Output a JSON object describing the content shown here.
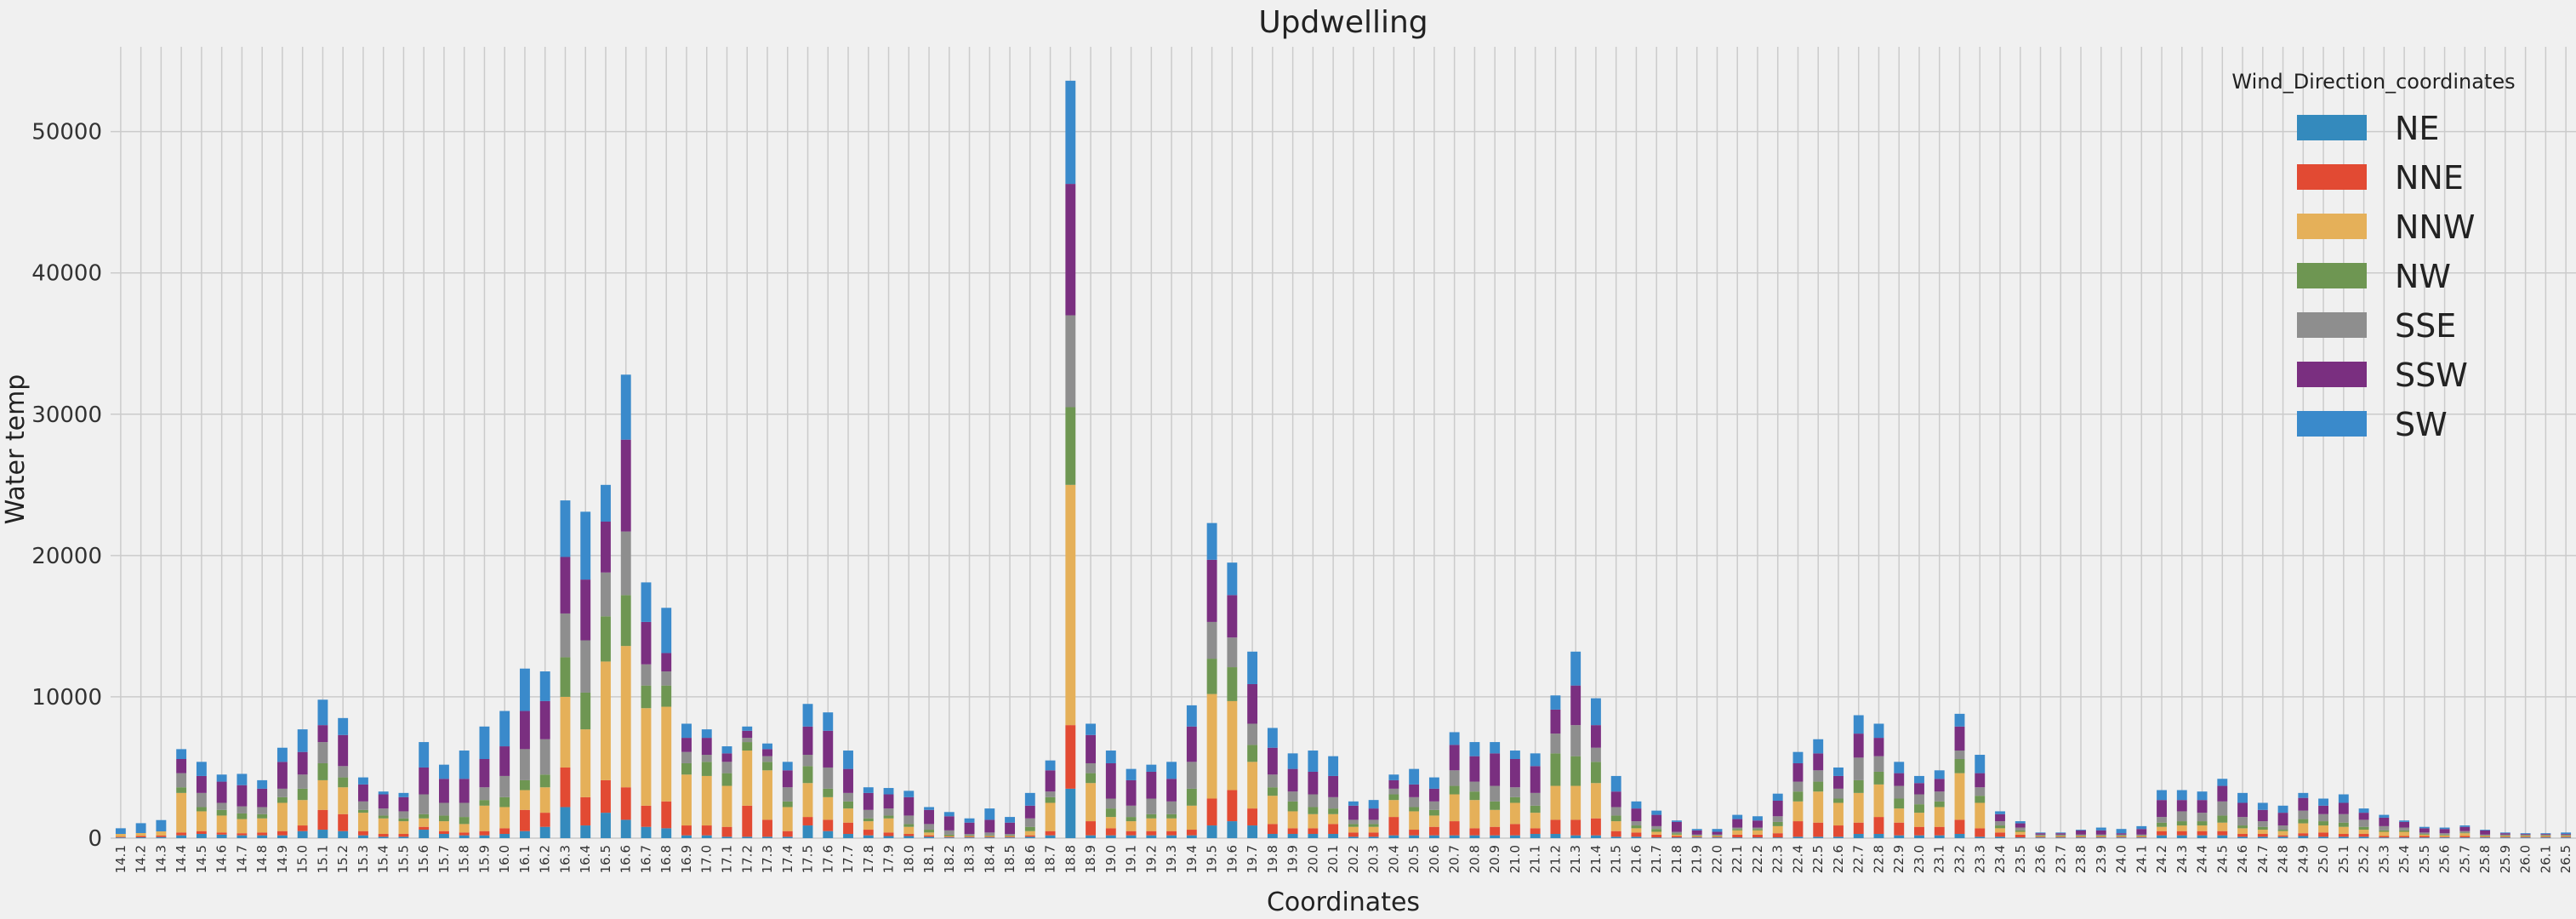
{
  "chart_data": {
    "type": "bar",
    "stacked": true,
    "title": "Updwelling",
    "xlabel": "Coordinates",
    "ylabel": "Water temp",
    "ylim": [
      0,
      56000
    ],
    "yticks": [
      0,
      10000,
      20000,
      30000,
      40000,
      50000
    ],
    "grid": true,
    "legend": {
      "title": "Wind_Direction_coordinates",
      "placement": "top-right"
    },
    "categories": [
      "14.1",
      "14.2",
      "14.3",
      "14.4",
      "14.5",
      "14.6",
      "14.7",
      "14.8",
      "14.9",
      "15.0",
      "15.1",
      "15.2",
      "15.3",
      "15.4",
      "15.5",
      "15.6",
      "15.7",
      "15.8",
      "15.9",
      "16.0",
      "16.1",
      "16.2",
      "16.3",
      "16.4",
      "16.5",
      "16.6",
      "16.7",
      "16.8",
      "16.9",
      "17.0",
      "17.1",
      "17.2",
      "17.3",
      "17.4",
      "17.5",
      "17.6",
      "17.7",
      "17.8",
      "17.9",
      "18.0",
      "18.1",
      "18.2",
      "18.3",
      "18.4",
      "18.5",
      "18.6",
      "18.7",
      "18.8",
      "18.9",
      "19.0",
      "19.1",
      "19.2",
      "19.3",
      "19.4",
      "19.5",
      "19.6",
      "19.7",
      "19.8",
      "19.9",
      "20.0",
      "20.1",
      "20.2",
      "20.3",
      "20.4",
      "20.5",
      "20.6",
      "20.7",
      "20.8",
      "20.9",
      "21.0",
      "21.1",
      "21.2",
      "21.3",
      "21.4",
      "21.5",
      "21.6",
      "21.7",
      "21.8",
      "21.9",
      "22.0",
      "22.1",
      "22.2",
      "22.3",
      "22.4",
      "22.5",
      "22.6",
      "22.7",
      "22.8",
      "22.9",
      "23.0",
      "23.1",
      "23.2",
      "23.3",
      "23.4",
      "23.5",
      "23.6",
      "23.7",
      "23.8",
      "23.9",
      "24.0",
      "24.1",
      "24.2",
      "24.3",
      "24.4",
      "24.5",
      "24.6",
      "24.7",
      "24.8",
      "24.9",
      "25.0",
      "25.1",
      "25.2",
      "25.3",
      "25.4",
      "25.5",
      "25.6",
      "25.7",
      "25.8",
      "25.9",
      "26.0",
      "26.1",
      "26.5"
    ],
    "series": [
      {
        "name": "NE",
        "color": "#348ABD",
        "values": [
          50,
          60,
          80,
          200,
          300,
          250,
          200,
          200,
          200,
          500,
          600,
          500,
          200,
          100,
          100,
          600,
          300,
          200,
          200,
          300,
          500,
          800,
          2200,
          900,
          1800,
          1300,
          800,
          700,
          200,
          200,
          100,
          100,
          100,
          100,
          900,
          500,
          300,
          200,
          150,
          150,
          100,
          50,
          50,
          50,
          50,
          100,
          200,
          3500,
          200,
          200,
          200,
          200,
          200,
          200,
          900,
          1200,
          900,
          300,
          300,
          300,
          300,
          100,
          100,
          200,
          200,
          200,
          200,
          200,
          200,
          200,
          300,
          300,
          200,
          200,
          100,
          100,
          50,
          50,
          50,
          50,
          50,
          50,
          50,
          100,
          100,
          100,
          300,
          300,
          200,
          200,
          200,
          300,
          100,
          100,
          50,
          50,
          50,
          50,
          50,
          50,
          50,
          200,
          200,
          200,
          200,
          100,
          100,
          100,
          150,
          100,
          100,
          100,
          50,
          50,
          50,
          50,
          50,
          50,
          50,
          50,
          50,
          50
        ]
      },
      {
        "name": "NNE",
        "color": "#E24A33",
        "values": [
          50,
          100,
          100,
          200,
          200,
          150,
          150,
          200,
          300,
          400,
          1400,
          1200,
          300,
          200,
          200,
          200,
          200,
          200,
          300,
          400,
          1500,
          1000,
          2800,
          2000,
          2300,
          2300,
          1500,
          1900,
          700,
          700,
          700,
          2200,
          1200,
          400,
          600,
          800,
          800,
          400,
          250,
          150,
          100,
          50,
          50,
          50,
          50,
          100,
          300,
          4500,
          1000,
          500,
          300,
          300,
          300,
          400,
          1900,
          2200,
          1200,
          700,
          400,
          400,
          700,
          300,
          300,
          1300,
          400,
          600,
          1000,
          500,
          600,
          800,
          400,
          1000,
          1100,
          1200,
          400,
          300,
          200,
          100,
          50,
          50,
          200,
          200,
          300,
          1100,
          1000,
          800,
          800,
          1200,
          900,
          600,
          600,
          1000,
          600,
          300,
          200,
          50,
          50,
          50,
          50,
          50,
          50,
          300,
          300,
          300,
          300,
          200,
          200,
          100,
          200,
          300,
          200,
          200,
          100,
          100,
          100,
          50,
          100,
          50,
          50,
          50,
          50,
          50
        ]
      },
      {
        "name": "NNW",
        "color": "#E5B059",
        "values": [
          200,
          200,
          300,
          2800,
          1400,
          1200,
          1000,
          1000,
          2000,
          1800,
          2100,
          1900,
          1300,
          1100,
          900,
          600,
          700,
          600,
          1800,
          1500,
          1400,
          1800,
          5000,
          4800,
          8400,
          10000,
          6900,
          6700,
          3600,
          3500,
          2900,
          3900,
          3500,
          1700,
          2400,
          1600,
          1000,
          600,
          1000,
          500,
          200,
          50,
          50,
          50,
          50,
          300,
          2000,
          17000,
          2700,
          800,
          700,
          900,
          900,
          1700,
          7400,
          6300,
          3300,
          2000,
          1200,
          1000,
          700,
          400,
          400,
          1200,
          1300,
          800,
          1900,
          2000,
          1200,
          1500,
          1100,
          2400,
          2400,
          2500,
          700,
          300,
          200,
          100,
          50,
          50,
          300,
          300,
          500,
          1400,
          2200,
          1600,
          2100,
          2300,
          1000,
          1000,
          1400,
          3300,
          1800,
          300,
          200,
          50,
          50,
          50,
          50,
          50,
          50,
          300,
          400,
          400,
          600,
          400,
          300,
          300,
          700,
          500,
          500,
          300,
          300,
          300,
          100,
          100,
          200,
          50,
          50,
          50,
          50,
          50
        ]
      },
      {
        "name": "NW",
        "color": "#6E9652",
        "values": [
          0,
          0,
          0,
          400,
          300,
          400,
          400,
          300,
          400,
          800,
          1200,
          700,
          200,
          200,
          200,
          300,
          400,
          500,
          400,
          700,
          700,
          900,
          2800,
          2600,
          3200,
          3600,
          1600,
          1500,
          800,
          1000,
          900,
          600,
          600,
          400,
          1200,
          600,
          500,
          200,
          200,
          200,
          200,
          100,
          50,
          50,
          50,
          300,
          400,
          5500,
          700,
          600,
          300,
          300,
          300,
          1200,
          2500,
          2400,
          1200,
          600,
          700,
          500,
          400,
          200,
          200,
          400,
          300,
          400,
          600,
          600,
          600,
          400,
          500,
          2300,
          2100,
          1500,
          400,
          200,
          200,
          100,
          50,
          50,
          100,
          100,
          300,
          700,
          700,
          300,
          900,
          900,
          700,
          600,
          400,
          1000,
          500,
          200,
          100,
          50,
          50,
          50,
          50,
          50,
          50,
          300,
          300,
          300,
          500,
          200,
          200,
          100,
          300,
          300,
          300,
          200,
          100,
          100,
          50,
          50,
          50,
          50,
          50,
          50,
          50,
          50
        ]
      },
      {
        "name": "SSE",
        "color": "#8E8E8E",
        "values": [
          0,
          0,
          0,
          1000,
          1000,
          500,
          500,
          500,
          600,
          1000,
          1500,
          800,
          600,
          500,
          500,
          1400,
          900,
          1000,
          900,
          1500,
          2200,
          2500,
          3100,
          3700,
          3100,
          4500,
          1500,
          1000,
          800,
          500,
          800,
          300,
          400,
          1000,
          800,
          1500,
          600,
          600,
          500,
          600,
          400,
          300,
          100,
          200,
          100,
          600,
          400,
          6500,
          700,
          700,
          800,
          1100,
          900,
          1900,
          2600,
          2100,
          1500,
          900,
          700,
          900,
          800,
          300,
          300,
          400,
          700,
          600,
          1100,
          700,
          1100,
          700,
          900,
          1400,
          2200,
          1000,
          600,
          300,
          200,
          100,
          50,
          50,
          100,
          100,
          400,
          700,
          800,
          700,
          1600,
          1100,
          900,
          700,
          700,
          600,
          600,
          300,
          200,
          50,
          50,
          50,
          50,
          50,
          50,
          400,
          700,
          600,
          1000,
          600,
          400,
          300,
          600,
          500,
          600,
          500,
          300,
          200,
          100,
          100,
          100,
          50,
          50,
          50,
          50,
          50
        ]
      },
      {
        "name": "SSW",
        "color": "#7A2F80",
        "values": [
          0,
          0,
          0,
          1000,
          1200,
          1500,
          1500,
          1300,
          1900,
          1600,
          1200,
          2200,
          1200,
          1000,
          1000,
          1900,
          1700,
          1700,
          2000,
          2100,
          2700,
          2700,
          4000,
          4300,
          3600,
          6500,
          3000,
          1300,
          1000,
          1200,
          600,
          500,
          500,
          1200,
          2000,
          2600,
          1700,
          1200,
          1000,
          1300,
          1000,
          1000,
          800,
          900,
          800,
          900,
          1500,
          9300,
          2000,
          2500,
          1800,
          1900,
          1600,
          2500,
          4400,
          3000,
          2800,
          1900,
          1600,
          1600,
          1500,
          1000,
          800,
          600,
          900,
          900,
          1800,
          1800,
          2300,
          2000,
          1900,
          1700,
          2800,
          1600,
          1100,
          900,
          800,
          700,
          300,
          200,
          600,
          500,
          1100,
          1300,
          1200,
          900,
          1700,
          1300,
          900,
          800,
          900,
          1700,
          1000,
          500,
          300,
          100,
          100,
          300,
          300,
          100,
          400,
          1200,
          800,
          900,
          1100,
          1000,
          800,
          900,
          900,
          600,
          800,
          500,
          600,
          400,
          300,
          300,
          300,
          300,
          100,
          50,
          50,
          50
        ]
      },
      {
        "name": "SW",
        "color": "#3A8ACB",
        "values": [
          400,
          700,
          800,
          700,
          1000,
          500,
          800,
          600,
          1000,
          1600,
          1800,
          1200,
          500,
          200,
          300,
          1800,
          1000,
          2000,
          2300,
          2500,
          3000,
          2100,
          4000,
          4800,
          2600,
          4600,
          2800,
          3200,
          1000,
          600,
          500,
          300,
          400,
          600,
          1600,
          1300,
          1300,
          400,
          450,
          450,
          200,
          300,
          300,
          800,
          400,
          900,
          700,
          7300,
          800,
          900,
          800,
          500,
          1200,
          1500,
          2600,
          2300,
          2300,
          1400,
          1100,
          1500,
          1400,
          300,
          600,
          400,
          1100,
          800,
          900,
          1000,
          800,
          600,
          900,
          1000,
          2400,
          1900,
          1100,
          500,
          300,
          100,
          100,
          200,
          300,
          300,
          500,
          800,
          1000,
          600,
          1300,
          1000,
          800,
          500,
          600,
          900,
          1300,
          200,
          150,
          50,
          50,
          50,
          200,
          300,
          200,
          700,
          700,
          600,
          500,
          700,
          500,
          500,
          350,
          500,
          600,
          300,
          200,
          100,
          100,
          100,
          100,
          50,
          50,
          50,
          50,
          100
        ]
      }
    ]
  }
}
